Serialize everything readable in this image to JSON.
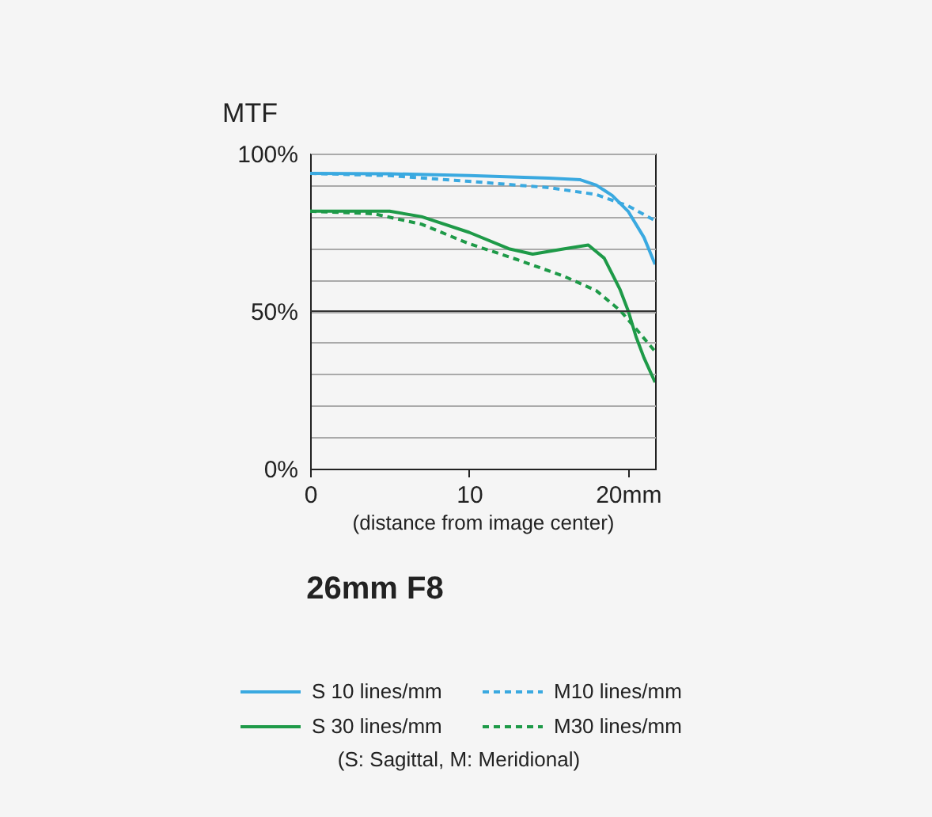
{
  "chart_data": {
    "type": "line",
    "title": "MTF",
    "subtitle": "26mm F8",
    "xlabel": "(distance from image center)",
    "annotations": [
      "(S: Sagittal, M: Meridional)"
    ],
    "xlim": [
      0,
      21.7
    ],
    "xticks": [
      0,
      10,
      {
        "value": 20,
        "label": "20mm"
      }
    ],
    "ylim": [
      0,
      100
    ],
    "yticks": [
      {
        "value": 0,
        "label": "0%"
      },
      {
        "value": 10,
        "label": null
      },
      {
        "value": 20,
        "label": null
      },
      {
        "value": 30,
        "label": null
      },
      {
        "value": 40,
        "label": null
      },
      {
        "value": 50,
        "label": "50%"
      },
      {
        "value": 60,
        "label": null
      },
      {
        "value": 70,
        "label": null
      },
      {
        "value": 80,
        "label": null
      },
      {
        "value": 90,
        "label": null
      },
      {
        "value": 100,
        "label": "100%"
      }
    ],
    "ref_lines": [
      {
        "axis": "y",
        "value": 50,
        "color": "#333333"
      }
    ],
    "grid": "y",
    "legend": "bottom",
    "marker": "none",
    "series": [
      {
        "name": "S 10 lines/mm",
        "color": "#3aa9e0",
        "line_style": "solid",
        "x": [
          0,
          5,
          10,
          15,
          17,
          18,
          19,
          20,
          21,
          21.7
        ],
        "values": [
          93.7,
          93.6,
          93,
          92.2,
          91.7,
          90,
          86.7,
          81.7,
          73.4,
          64.8
        ]
      },
      {
        "name": "S 30 lines/mm",
        "color": "#1e9a48",
        "line_style": "solid",
        "x": [
          0,
          5,
          7,
          10,
          12.5,
          14,
          16,
          17.5,
          18.5,
          19.5,
          20,
          20.5,
          21,
          21.7
        ],
        "values": [
          81.7,
          81.7,
          80,
          75,
          69.8,
          68.1,
          69.8,
          71,
          66.8,
          56.8,
          50.2,
          41.9,
          35.2,
          27.4
        ]
      },
      {
        "name": "M10 lines/mm",
        "color": "#3aa9e0",
        "line_style": "dashed",
        "x": [
          0,
          5,
          10,
          15,
          18,
          20,
          21.7
        ],
        "values": [
          93.7,
          93,
          91.2,
          89.2,
          87,
          83.4,
          78.7
        ]
      },
      {
        "name": "M30 lines/mm",
        "color": "#1e9a48",
        "line_style": "dashed",
        "x": [
          0,
          4,
          7,
          10,
          13,
          16,
          18,
          19.5,
          20.5,
          21.7
        ],
        "values": [
          81.7,
          80.9,
          77.6,
          71.4,
          66.4,
          61,
          56.5,
          50.2,
          44.4,
          37.2
        ]
      }
    ]
  }
}
